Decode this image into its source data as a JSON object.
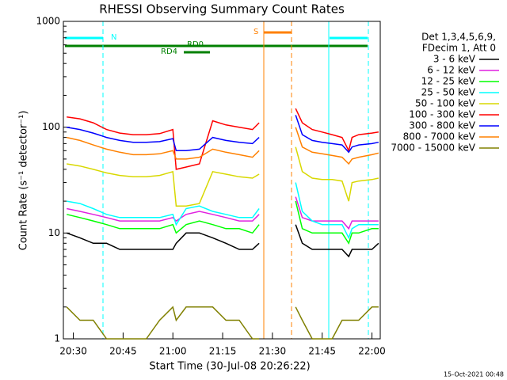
{
  "chart_data": {
    "type": "line",
    "title": "RHESSI Observing Summary Count Rates",
    "xlabel": "Start Time (30-Jul-08 20:26:22)",
    "ylabel": "Count Rate (s⁻¹ detector⁻¹)",
    "footer": "15-Oct-2021 00:48",
    "legend_header": [
      "Det 1,3,4,5,6,9,",
      "FDecim 1, Att 0"
    ],
    "annotations": [
      "N",
      "RD0",
      "RD4",
      "S"
    ],
    "log_y": true,
    "xlim": [
      27,
      122.5
    ],
    "ylim": [
      1,
      1000
    ],
    "xticks": [
      {
        "value": 30,
        "label": "20:30"
      },
      {
        "value": 45,
        "label": "20:45"
      },
      {
        "value": 60,
        "label": "21:00"
      },
      {
        "value": 75,
        "label": "21:15"
      },
      {
        "value": 90,
        "label": "21:30"
      },
      {
        "value": 105,
        "label": "21:45"
      },
      {
        "value": 120,
        "label": "22:00"
      }
    ],
    "yticks": [
      1,
      10,
      100,
      1000
    ],
    "x": [
      28,
      32,
      36,
      40,
      44,
      48,
      52,
      56,
      60,
      61,
      64,
      68,
      72,
      76,
      80,
      84,
      86,
      92,
      97,
      99,
      102,
      105,
      108,
      111,
      113,
      114,
      116,
      120,
      122
    ],
    "series": [
      {
        "name": "3 - 6 keV",
        "color": "#000000",
        "values": [
          10,
          9,
          8,
          8,
          7,
          7,
          7,
          7,
          7,
          8,
          10,
          10,
          9,
          8,
          7,
          7,
          8,
          null,
          12,
          8,
          7,
          7,
          7,
          7,
          6,
          7,
          7,
          7,
          8
        ]
      },
      {
        "name": "6 - 12 keV",
        "color": "#e020e0",
        "values": [
          17,
          16,
          15,
          14,
          13,
          13,
          13,
          13,
          14,
          13,
          15,
          16,
          15,
          14,
          13,
          13,
          15,
          null,
          22,
          14,
          13,
          13,
          13,
          13,
          11,
          13,
          13,
          13,
          13
        ]
      },
      {
        "name": "12 - 25 keV",
        "color": "#00ff00",
        "values": [
          15,
          14,
          13,
          12,
          11,
          11,
          11,
          11,
          12,
          10,
          12,
          13,
          12,
          11,
          11,
          10,
          12,
          null,
          20,
          11,
          10,
          10,
          10,
          10,
          8,
          10,
          10,
          11,
          11
        ]
      },
      {
        "name": "25 - 50 keV",
        "color": "#00ffff",
        "values": [
          20,
          19,
          17,
          15,
          14,
          14,
          14,
          14,
          15,
          12,
          17,
          18,
          16,
          15,
          14,
          14,
          17,
          null,
          30,
          16,
          13,
          12,
          12,
          12,
          9,
          11,
          12,
          12,
          12
        ]
      },
      {
        "name": "50 - 100 keV",
        "color": "#d8d800",
        "values": [
          45,
          43,
          40,
          37,
          35,
          34,
          34,
          35,
          38,
          18,
          18,
          19,
          38,
          36,
          34,
          33,
          36,
          null,
          65,
          38,
          33,
          32,
          32,
          31,
          20,
          30,
          31,
          32,
          33
        ]
      },
      {
        "name": "100 - 300 keV",
        "color": "#ff0000",
        "values": [
          125,
          120,
          110,
          95,
          88,
          85,
          85,
          87,
          95,
          40,
          42,
          45,
          115,
          105,
          100,
          95,
          110,
          null,
          150,
          110,
          95,
          90,
          85,
          80,
          60,
          80,
          85,
          88,
          90
        ]
      },
      {
        "name": "300 - 800 keV",
        "color": "#0000ff",
        "values": [
          100,
          95,
          88,
          80,
          75,
          72,
          72,
          73,
          78,
          60,
          60,
          62,
          80,
          75,
          72,
          70,
          80,
          null,
          130,
          85,
          75,
          72,
          70,
          68,
          58,
          65,
          68,
          70,
          72
        ]
      },
      {
        "name": "800 - 7000 keV",
        "color": "#ff8000",
        "values": [
          80,
          75,
          68,
          62,
          58,
          55,
          55,
          56,
          60,
          50,
          50,
          52,
          62,
          58,
          55,
          52,
          60,
          null,
          100,
          65,
          58,
          56,
          54,
          52,
          45,
          50,
          52,
          55,
          57
        ]
      },
      {
        "name": "7000 - 15000 keV",
        "color": "#808000",
        "values": [
          2,
          1.5,
          1.5,
          1,
          1,
          1,
          1,
          1.5,
          2,
          1.5,
          2,
          2,
          2,
          1.5,
          1.5,
          1,
          1,
          null,
          2,
          1.5,
          1,
          1,
          1,
          1.5,
          1.5,
          1.5,
          1.5,
          2,
          2
        ]
      }
    ]
  }
}
